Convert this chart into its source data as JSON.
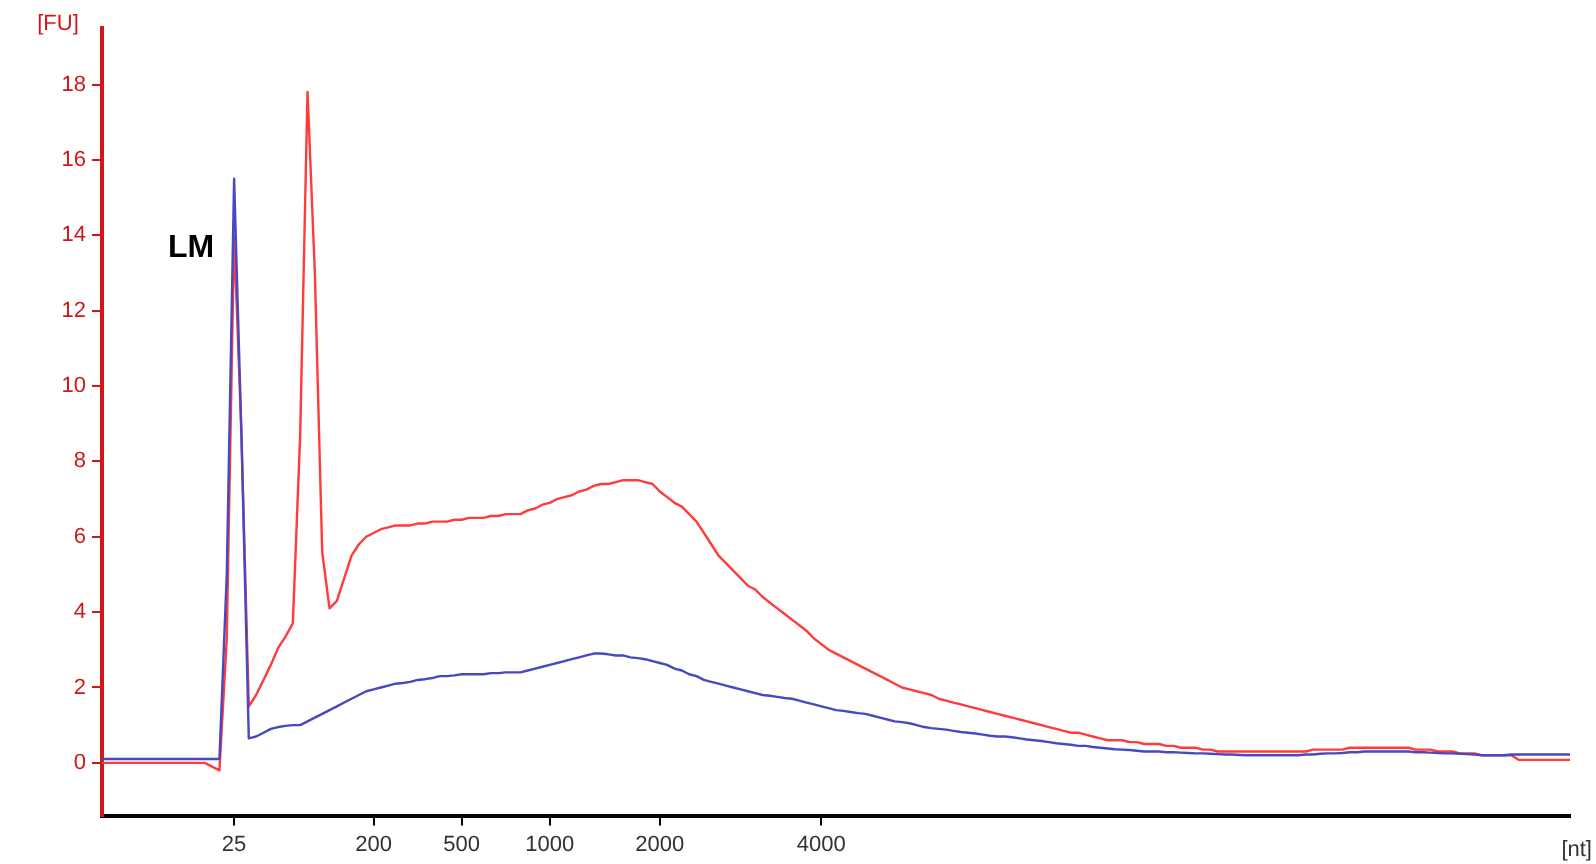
{
  "chart_data": {
    "type": "line",
    "ylabel": "[FU]",
    "xlabel": "[nt]",
    "annotations": [
      "LM"
    ],
    "categories": [
      null,
      null,
      null,
      null,
      null,
      null,
      null,
      null,
      null,
      null,
      null,
      null,
      null,
      null,
      null,
      null,
      null,
      null,
      "25",
      null,
      null,
      null,
      null,
      null,
      null,
      null,
      null,
      null,
      null,
      null,
      null,
      null,
      null,
      null,
      null,
      null,
      null,
      "200",
      null,
      null,
      null,
      null,
      null,
      null,
      null,
      null,
      null,
      null,
      null,
      "500",
      null,
      null,
      null,
      null,
      null,
      null,
      null,
      null,
      null,
      null,
      null,
      "1000",
      null,
      null,
      null,
      null,
      null,
      null,
      null,
      null,
      null,
      null,
      null,
      null,
      null,
      null,
      "2000",
      null,
      null,
      null,
      null,
      null,
      null,
      null,
      null,
      null,
      null,
      null,
      null,
      null,
      null,
      null,
      null,
      null,
      null,
      null,
      null,
      null,
      "4000",
      null,
      null,
      null,
      null,
      null,
      null,
      null,
      null,
      null,
      null,
      null,
      null,
      null,
      null,
      null,
      null,
      null,
      null,
      null,
      null,
      null,
      null,
      null,
      null,
      null,
      null,
      null,
      null,
      null,
      null,
      null,
      null,
      null,
      null,
      null,
      null,
      null,
      null,
      null,
      null,
      null,
      null,
      null,
      null,
      null,
      null,
      null,
      null,
      null,
      null,
      null,
      null,
      null,
      null,
      null,
      null,
      null,
      null,
      null,
      null,
      null,
      null,
      null,
      null,
      null,
      null,
      null,
      null,
      null,
      null,
      null,
      null,
      null,
      null,
      null,
      null,
      null,
      null,
      null,
      null,
      null,
      null,
      null,
      null,
      null,
      null,
      null,
      null,
      null,
      null,
      null,
      null,
      null,
      null,
      null,
      null,
      null,
      null,
      null,
      null,
      null,
      null
    ],
    "ylim": [
      -1.4,
      19.5
    ],
    "yticks": [
      0,
      2,
      4,
      6,
      8,
      10,
      12,
      14,
      16,
      18
    ],
    "grid": false,
    "legend": false,
    "marker": "none",
    "line_style": "solid",
    "series": [
      {
        "color": "#ff3b3b",
        "values": [
          0,
          0,
          0,
          0,
          0,
          0,
          0,
          0,
          0,
          0,
          0,
          0,
          0,
          0,
          0,
          -0.1,
          -0.2,
          3.3,
          14,
          8.7,
          1.5,
          1.8,
          2.2,
          2.6,
          3.05,
          3.35,
          3.7,
          8.7,
          17.8,
          13,
          5.6,
          4.1,
          4.3,
          4.9,
          5.5,
          5.8,
          6.0,
          6.1,
          6.2,
          6.25,
          6.3,
          6.3,
          6.3,
          6.35,
          6.35,
          6.4,
          6.4,
          6.4,
          6.45,
          6.45,
          6.5,
          6.5,
          6.5,
          6.55,
          6.55,
          6.6,
          6.6,
          6.6,
          6.7,
          6.75,
          6.85,
          6.9,
          7.0,
          7.05,
          7.1,
          7.2,
          7.25,
          7.35,
          7.4,
          7.4,
          7.45,
          7.5,
          7.5,
          7.5,
          7.45,
          7.4,
          7.2,
          7.05,
          6.9,
          6.8,
          6.6,
          6.4,
          6.1,
          5.8,
          5.5,
          5.3,
          5.1,
          4.9,
          4.7,
          4.6,
          4.4,
          4.25,
          4.1,
          3.95,
          3.8,
          3.65,
          3.5,
          3.3,
          3.15,
          3.0,
          2.9,
          2.8,
          2.7,
          2.6,
          2.5,
          2.4,
          2.3,
          2.2,
          2.1,
          2.0,
          1.95,
          1.9,
          1.85,
          1.8,
          1.7,
          1.65,
          1.6,
          1.55,
          1.5,
          1.45,
          1.4,
          1.35,
          1.3,
          1.25,
          1.2,
          1.15,
          1.1,
          1.05,
          1.0,
          0.95,
          0.9,
          0.85,
          0.8,
          0.8,
          0.75,
          0.7,
          0.65,
          0.6,
          0.6,
          0.6,
          0.55,
          0.55,
          0.5,
          0.5,
          0.5,
          0.45,
          0.45,
          0.4,
          0.4,
          0.4,
          0.35,
          0.35,
          0.3,
          0.3,
          0.3,
          0.3,
          0.3,
          0.3,
          0.3,
          0.3,
          0.3,
          0.3,
          0.3,
          0.3,
          0.3,
          0.35,
          0.35,
          0.35,
          0.35,
          0.35,
          0.4,
          0.4,
          0.4,
          0.4,
          0.4,
          0.4,
          0.4,
          0.4,
          0.4,
          0.35,
          0.35,
          0.35,
          0.3,
          0.3,
          0.3,
          0.25,
          0.25,
          0.25,
          0.2,
          0.2,
          0.2,
          0.2,
          0.2,
          0.08,
          0.08,
          0.08,
          0.08,
          0.08,
          0.08,
          0.08,
          0.08
        ]
      },
      {
        "color": "#4848c0",
        "values": [
          0.1,
          0.1,
          0.1,
          0.1,
          0.1,
          0.1,
          0.1,
          0.1,
          0.1,
          0.1,
          0.1,
          0.1,
          0.1,
          0.1,
          0.1,
          0.1,
          0.1,
          5,
          15.5,
          8.7,
          0.65,
          0.7,
          0.8,
          0.9,
          0.95,
          0.98,
          1.0,
          1.0,
          1.1,
          1.2,
          1.3,
          1.4,
          1.5,
          1.6,
          1.7,
          1.8,
          1.9,
          1.95,
          2.0,
          2.05,
          2.1,
          2.12,
          2.15,
          2.2,
          2.22,
          2.25,
          2.3,
          2.3,
          2.32,
          2.35,
          2.35,
          2.35,
          2.35,
          2.38,
          2.38,
          2.4,
          2.4,
          2.4,
          2.45,
          2.5,
          2.55,
          2.6,
          2.65,
          2.7,
          2.75,
          2.8,
          2.85,
          2.9,
          2.9,
          2.88,
          2.85,
          2.85,
          2.8,
          2.78,
          2.75,
          2.7,
          2.65,
          2.6,
          2.5,
          2.45,
          2.35,
          2.3,
          2.2,
          2.15,
          2.1,
          2.05,
          2.0,
          1.95,
          1.9,
          1.85,
          1.8,
          1.78,
          1.75,
          1.72,
          1.7,
          1.65,
          1.6,
          1.55,
          1.5,
          1.45,
          1.4,
          1.38,
          1.35,
          1.32,
          1.3,
          1.25,
          1.2,
          1.15,
          1.1,
          1.08,
          1.05,
          1.0,
          0.95,
          0.92,
          0.9,
          0.88,
          0.85,
          0.82,
          0.8,
          0.78,
          0.75,
          0.72,
          0.7,
          0.7,
          0.68,
          0.65,
          0.62,
          0.6,
          0.58,
          0.55,
          0.52,
          0.5,
          0.48,
          0.45,
          0.45,
          0.42,
          0.4,
          0.38,
          0.36,
          0.35,
          0.34,
          0.32,
          0.3,
          0.3,
          0.3,
          0.28,
          0.28,
          0.27,
          0.26,
          0.25,
          0.25,
          0.24,
          0.23,
          0.22,
          0.22,
          0.21,
          0.2,
          0.2,
          0.2,
          0.2,
          0.2,
          0.2,
          0.2,
          0.2,
          0.22,
          0.22,
          0.24,
          0.25,
          0.25,
          0.26,
          0.28,
          0.28,
          0.3,
          0.3,
          0.3,
          0.3,
          0.3,
          0.3,
          0.3,
          0.28,
          0.28,
          0.27,
          0.26,
          0.25,
          0.25,
          0.24,
          0.23,
          0.22,
          0.2,
          0.2,
          0.2,
          0.2,
          0.22,
          0.22,
          0.22,
          0.22,
          0.22,
          0.22,
          0.22,
          0.22,
          0.22
        ]
      }
    ]
  }
}
